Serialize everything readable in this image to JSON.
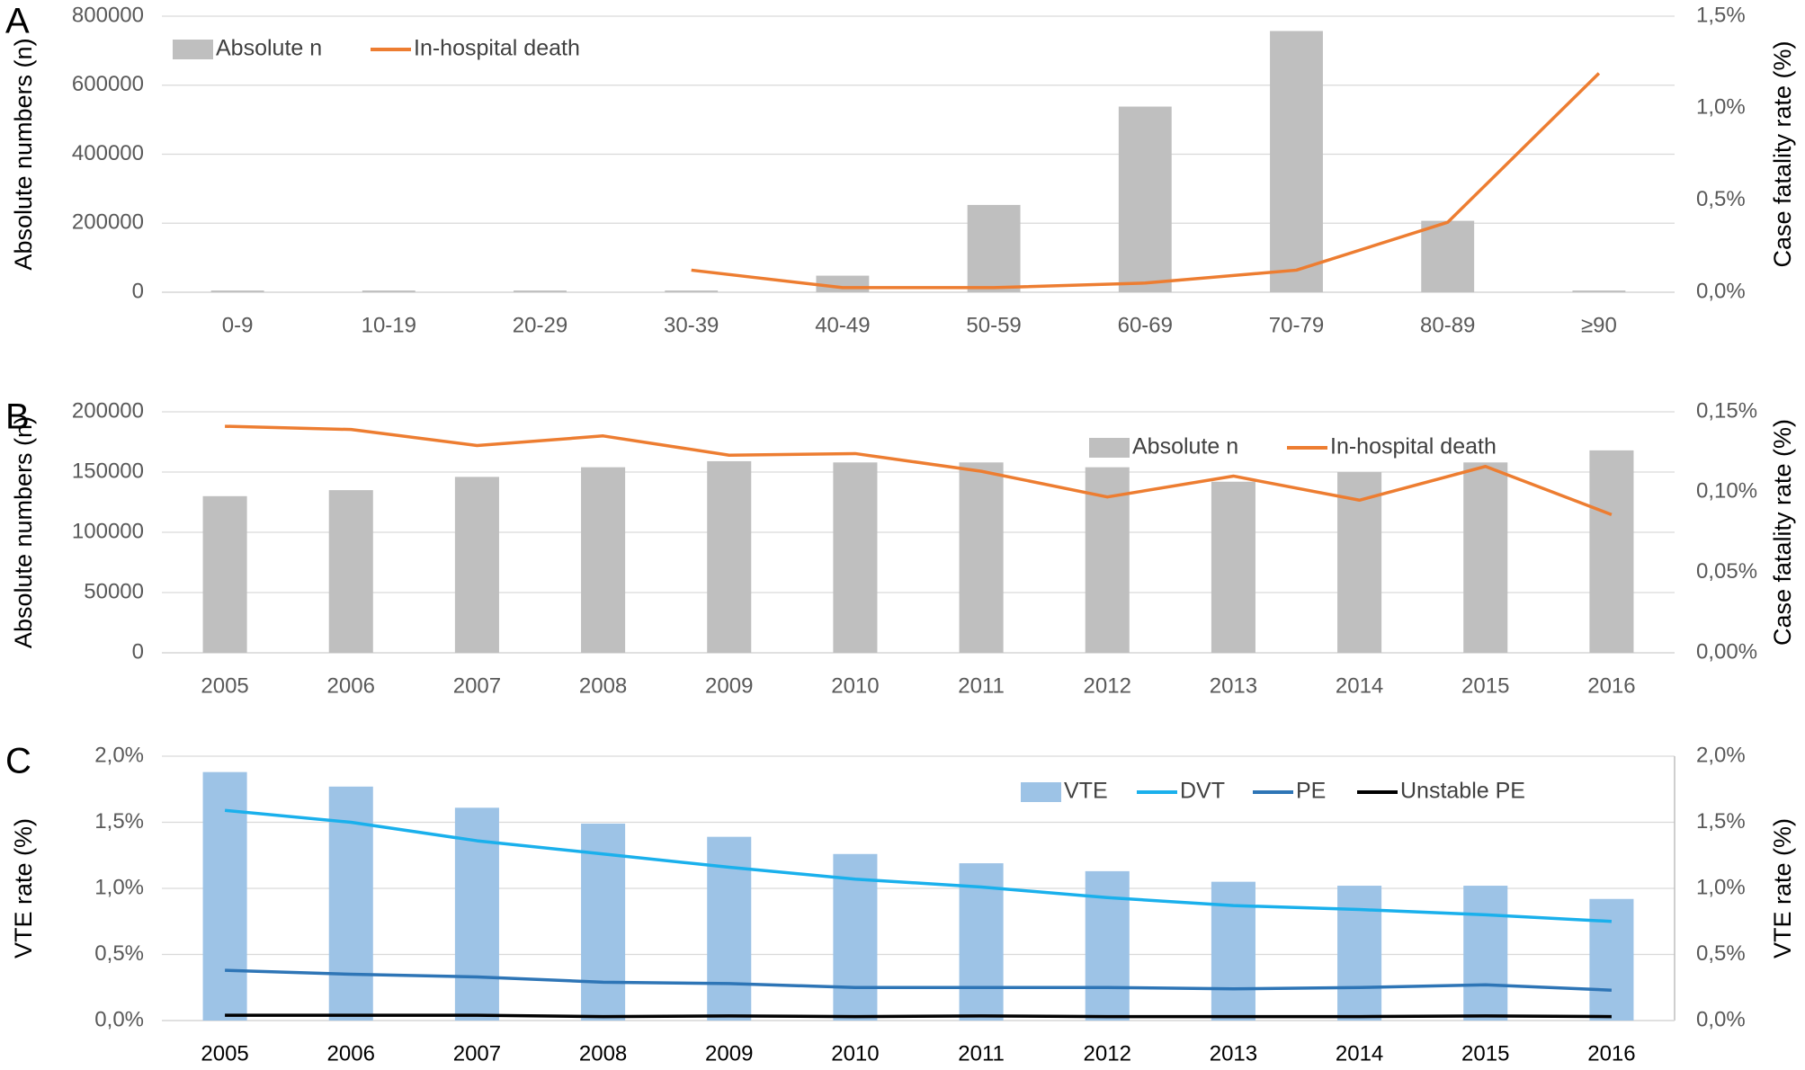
{
  "chart_data": [
    {
      "type": "combo",
      "panel": "A",
      "ylabel": "Absolute numbers (n)",
      "y2label": "Case fatality rate (%)",
      "categories": [
        "0-9",
        "10-19",
        "20-29",
        "30-39",
        "40-49",
        "50-59",
        "60-69",
        "70-79",
        "80-89",
        "≥90"
      ],
      "series": [
        {
          "name": "Absolute n",
          "type": "bar",
          "color": "#bfbfbf",
          "values": [
            5000,
            5000,
            5000,
            5000,
            48000,
            253000,
            538000,
            757000,
            207000,
            5000
          ]
        },
        {
          "name": "In-hospital death",
          "type": "line",
          "axis": "y2",
          "color": "#ed7d31",
          "values": [
            null,
            null,
            null,
            0.12,
            0.025,
            0.025,
            0.05,
            0.12,
            0.38,
            1.19
          ]
        }
      ],
      "ylim": [
        0,
        800000
      ],
      "yticks": [
        0,
        200000,
        400000,
        600000,
        800000
      ],
      "y2lim": [
        0,
        1.5
      ],
      "y2ticks": [
        {
          "value": 0,
          "label": "0,0%"
        },
        {
          "value": 0.5,
          "label": "0,5%"
        },
        {
          "value": 1.0,
          "label": "1,0%"
        },
        {
          "value": 1.5,
          "label": "1,5%"
        }
      ],
      "grid": true,
      "legend": "upper left"
    },
    {
      "type": "combo",
      "panel": "B",
      "ylabel": "Absolute numbers (n)",
      "y2label": "Case fatality rate (%)",
      "categories": [
        "2005",
        "2006",
        "2007",
        "2008",
        "2009",
        "2010",
        "2011",
        "2012",
        "2013",
        "2014",
        "2015",
        "2016"
      ],
      "series": [
        {
          "name": "Absolute n",
          "type": "bar",
          "color": "#bfbfbf",
          "values": [
            130000,
            135000,
            146000,
            154000,
            159000,
            158000,
            158000,
            154000,
            142000,
            150000,
            158000,
            168000
          ]
        },
        {
          "name": "In-hospital death",
          "type": "line",
          "axis": "y2",
          "color": "#ed7d31",
          "values": [
            0.141,
            0.139,
            0.129,
            0.135,
            0.123,
            0.124,
            0.113,
            0.097,
            0.11,
            0.095,
            0.116,
            0.086
          ]
        }
      ],
      "ylim": [
        0,
        200000
      ],
      "yticks": [
        0,
        50000,
        100000,
        150000,
        200000
      ],
      "y2lim": [
        0,
        0.15
      ],
      "y2ticks": [
        {
          "value": 0,
          "label": "0,00%"
        },
        {
          "value": 0.05,
          "label": "0,05%"
        },
        {
          "value": 0.1,
          "label": "0,10%"
        },
        {
          "value": 0.15,
          "label": "0,15%"
        }
      ],
      "grid": true,
      "legend": "upper right"
    },
    {
      "type": "combo",
      "panel": "C",
      "ylabel": "VTE rate (%)",
      "y2label": "VTE rate (%)",
      "categories": [
        "2005",
        "2006",
        "2007",
        "2008",
        "2009",
        "2010",
        "2011",
        "2012",
        "2013",
        "2014",
        "2015",
        "2016"
      ],
      "series": [
        {
          "name": "VTE",
          "type": "bar",
          "color": "#9dc3e6",
          "values": [
            1.88,
            1.77,
            1.61,
            1.49,
            1.39,
            1.26,
            1.19,
            1.13,
            1.05,
            1.02,
            1.02,
            0.92
          ]
        },
        {
          "name": "DVT",
          "type": "line",
          "color": "#1ab0ec",
          "values": [
            1.59,
            1.5,
            1.36,
            1.26,
            1.16,
            1.07,
            1.01,
            0.93,
            0.87,
            0.84,
            0.8,
            0.75
          ]
        },
        {
          "name": "PE",
          "type": "line",
          "color": "#2e75b6",
          "values": [
            0.38,
            0.35,
            0.33,
            0.29,
            0.28,
            0.25,
            0.25,
            0.25,
            0.24,
            0.25,
            0.27,
            0.23
          ]
        },
        {
          "name": "Unstable PE",
          "type": "line",
          "color": "#000000",
          "values": [
            0.04,
            0.04,
            0.04,
            0.03,
            0.035,
            0.03,
            0.035,
            0.03,
            0.03,
            0.03,
            0.035,
            0.03
          ]
        }
      ],
      "ylim": [
        0,
        2
      ],
      "yticks": [
        {
          "value": 0,
          "label": "0,0%"
        },
        {
          "value": 0.5,
          "label": "0,5%"
        },
        {
          "value": 1.0,
          "label": "1,0%"
        },
        {
          "value": 1.5,
          "label": "1,5%"
        },
        {
          "value": 2.0,
          "label": "2,0%"
        }
      ],
      "y2lim": [
        0,
        2
      ],
      "y2ticks": [
        {
          "value": 0,
          "label": "0,0%"
        },
        {
          "value": 0.5,
          "label": "0,5%"
        },
        {
          "value": 1.0,
          "label": "1,0%"
        },
        {
          "value": 1.5,
          "label": "1,5%"
        },
        {
          "value": 2.0,
          "label": "2,0%"
        }
      ],
      "grid": true,
      "legend": "upper right",
      "right_axis_line": true
    }
  ]
}
